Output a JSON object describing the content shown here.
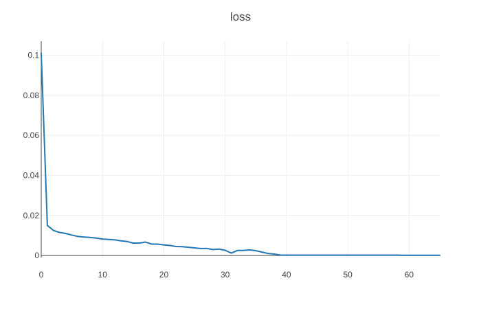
{
  "chart_data": {
    "type": "line",
    "title": "loss",
    "xlabel": "",
    "ylabel": "",
    "xlim": [
      0,
      65
    ],
    "ylim": [
      -0.001,
      0.107
    ],
    "grid": true,
    "legend": "none",
    "x_ticks": [
      0,
      10,
      20,
      30,
      40,
      50,
      60
    ],
    "x_tick_labels": [
      "0",
      "10",
      "20",
      "30",
      "40",
      "50",
      "60"
    ],
    "y_ticks": [
      0,
      0.02,
      0.04,
      0.06,
      0.08,
      0.1
    ],
    "y_tick_labels": [
      "0",
      "0.02",
      "0.04",
      "0.06",
      "0.08",
      "0.1"
    ],
    "series": [
      {
        "color": "#1f77b4",
        "x": [
          0,
          1,
          2,
          3,
          4,
          5,
          6,
          7,
          8,
          9,
          10,
          11,
          12,
          13,
          14,
          15,
          16,
          17,
          18,
          19,
          20,
          21,
          22,
          23,
          24,
          25,
          26,
          27,
          28,
          29,
          30,
          31,
          32,
          33,
          34,
          35,
          36,
          37,
          38,
          39,
          40,
          41,
          42,
          43,
          44,
          45,
          46,
          47,
          48,
          49,
          50,
          51,
          52,
          53,
          54,
          55,
          56,
          57,
          58,
          59,
          60,
          61,
          62,
          63,
          64,
          65
        ],
        "y": [
          0.101,
          0.015,
          0.0125,
          0.0115,
          0.011,
          0.0102,
          0.0095,
          0.0092,
          0.009,
          0.0087,
          0.0082,
          0.008,
          0.0078,
          0.0073,
          0.007,
          0.0062,
          0.0062,
          0.0067,
          0.0057,
          0.0057,
          0.0053,
          0.005,
          0.0045,
          0.0044,
          0.0041,
          0.0038,
          0.0035,
          0.0035,
          0.003,
          0.0032,
          0.0026,
          0.0012,
          0.0025,
          0.0025,
          0.0028,
          0.0024,
          0.0017,
          0.001,
          0.0007,
          0.0002,
          0.0002,
          0.0002,
          0.0002,
          0.0002,
          0.0002,
          0.0002,
          0.0002,
          0.0002,
          0.0002,
          0.0002,
          0.0002,
          0.0002,
          0.0002,
          0.0002,
          0.0002,
          0.0002,
          0.0002,
          0.0002,
          0.0002,
          0.0001,
          0.0001,
          0.0001,
          0.0001,
          0.0001,
          0.0001,
          0.0001
        ]
      }
    ]
  },
  "colors": {
    "line": "#1f77b4",
    "grid": "#eeeeee",
    "axis": "#444444",
    "text": "#444444"
  }
}
